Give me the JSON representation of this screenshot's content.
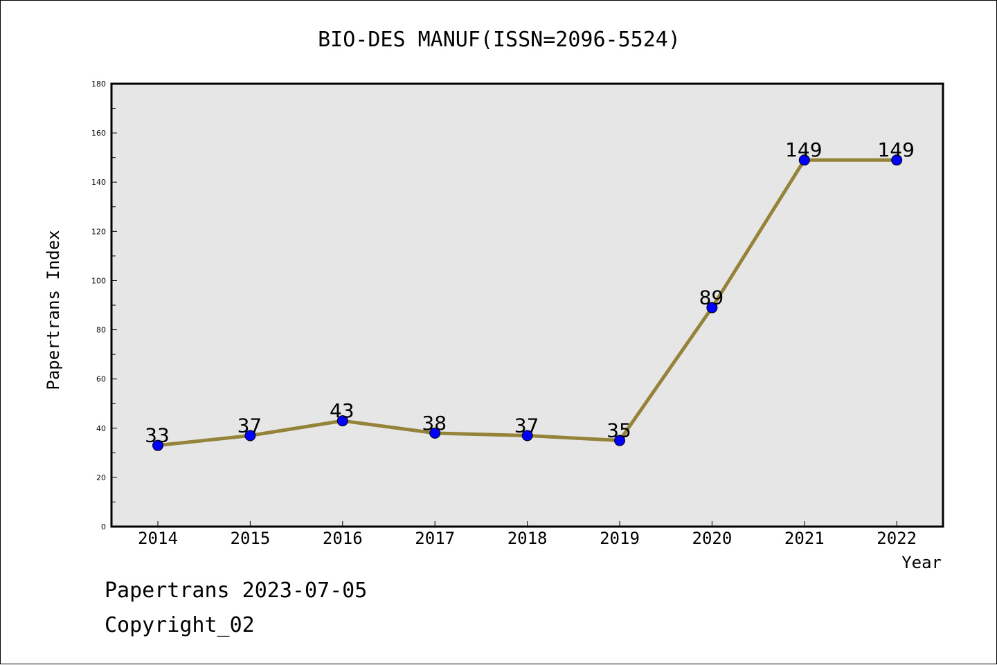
{
  "chart_data": {
    "type": "line",
    "title": "BIO-DES MANUF(ISSN=2096-5524)",
    "xlabel": "Year",
    "ylabel": "Papertrans Index",
    "categories": [
      "2014",
      "2015",
      "2016",
      "2017",
      "2018",
      "2019",
      "2020",
      "2021",
      "2022"
    ],
    "series": [
      {
        "values": [
          33,
          37,
          43,
          38,
          37,
          35,
          89,
          149,
          149
        ]
      }
    ],
    "ylim": [
      0,
      180
    ],
    "yticks": [
      "0",
      "20",
      "40",
      "60",
      "80",
      "100",
      "120",
      "140",
      "160",
      "180"
    ],
    "data_labels": [
      "33",
      "37",
      "43",
      "38",
      "37",
      "35",
      "89",
      "149",
      "149"
    ],
    "grid": false,
    "legend": "none",
    "colors": {
      "line": "#948339",
      "marker": "#0000ff",
      "plot_background": "#e6e6e6"
    }
  },
  "footer": {
    "line1": "Papertrans 2023-07-05",
    "line2": "Copyright_02"
  }
}
